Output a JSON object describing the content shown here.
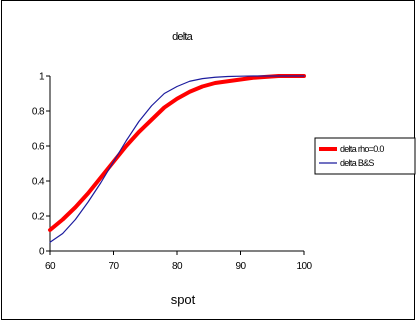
{
  "chart_data": {
    "type": "line",
    "title": "delta",
    "xlabel": "spot",
    "ylabel": "",
    "xlim": [
      60,
      100
    ],
    "ylim": [
      0,
      1
    ],
    "xticks": [
      "60",
      "70",
      "80",
      "90",
      "100"
    ],
    "yticks": [
      "0",
      "0.2",
      "0.4",
      "0.6",
      "0.8",
      "1"
    ],
    "grid": false,
    "legend_position": "right",
    "x": [
      60,
      62,
      64,
      66,
      68,
      70,
      72,
      74,
      76,
      78,
      80,
      82,
      84,
      86,
      88,
      90,
      92,
      94,
      96,
      98,
      100
    ],
    "series": [
      {
        "name": "delta rho=0.0",
        "color": "#ff0000",
        "values": [
          0.12,
          0.18,
          0.25,
          0.33,
          0.42,
          0.51,
          0.6,
          0.68,
          0.75,
          0.82,
          0.87,
          0.91,
          0.94,
          0.96,
          0.97,
          0.98,
          0.99,
          0.995,
          1.0,
          1.0,
          1.0
        ]
      },
      {
        "name": "delta B&S",
        "color": "#1c1c9e",
        "values": [
          0.05,
          0.1,
          0.18,
          0.28,
          0.39,
          0.51,
          0.63,
          0.74,
          0.83,
          0.9,
          0.94,
          0.97,
          0.985,
          0.993,
          0.997,
          0.999,
          1.0,
          1.0,
          1.0,
          1.0,
          1.0
        ]
      }
    ]
  }
}
